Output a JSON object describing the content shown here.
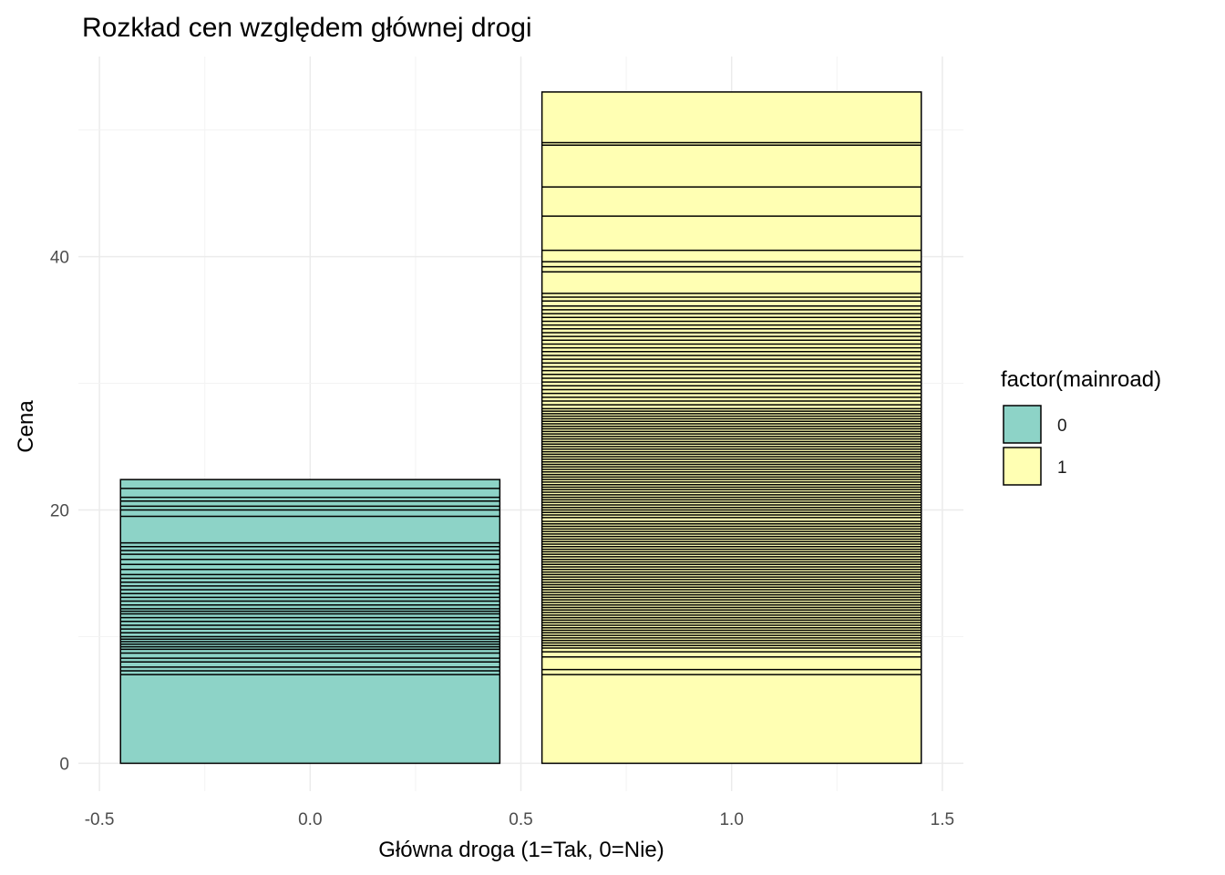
{
  "chart_data": {
    "type": "bar",
    "title": "Rozkład cen względem głównej drogi",
    "xlabel": "Główna droga (1=Tak, 0=Nie)",
    "ylabel": "Cena",
    "xlim": [
      -0.55,
      1.55
    ],
    "ylim": [
      -2.2,
      55.8
    ],
    "x_ticks": [
      -0.5,
      0.0,
      0.5,
      1.0,
      1.5
    ],
    "x_tick_labels": [
      "-0.5",
      "0.0",
      "0.5",
      "1.0",
      "1.5"
    ],
    "y_ticks": [
      0,
      20,
      40
    ],
    "y_tick_labels": [
      "0",
      "20",
      "40"
    ],
    "grid": true,
    "legend": {
      "title": "factor(mainroad)",
      "position": "right",
      "entries": [
        {
          "label": "0",
          "color": "#8dd3c7"
        },
        {
          "label": "1",
          "color": "#ffffb3"
        }
      ]
    },
    "bar_width": 0.9,
    "outline_color": "#000000",
    "series": [
      {
        "name": "0",
        "x": 0,
        "color": "#8dd3c7",
        "total": 22.4
      },
      {
        "name": "1",
        "x": 1,
        "color": "#ffffb3",
        "total": 53.0
      }
    ],
    "segment_boundaries": {
      "0": [
        7.0,
        7.3,
        7.6,
        8.0,
        8.3,
        8.7,
        9.0,
        9.2,
        9.4,
        9.6,
        9.8,
        10.0,
        10.3,
        10.6,
        10.9,
        11.2,
        11.5,
        11.8,
        12.0,
        12.2,
        12.5,
        12.8,
        13.1,
        13.4,
        13.7,
        14.0,
        14.3,
        14.6,
        14.9,
        15.3,
        15.7,
        16.1,
        16.5,
        16.8,
        17.1,
        17.4,
        19.5,
        20.0,
        20.3,
        20.7,
        21.0,
        21.7
      ],
      "1": [
        7.0,
        7.4,
        8.4,
        8.8,
        9.1,
        9.3,
        9.5,
        9.7,
        9.9,
        10.1,
        10.3,
        10.5,
        10.7,
        10.9,
        11.1,
        11.3,
        11.5,
        11.7,
        11.9,
        12.1,
        12.3,
        12.5,
        12.7,
        12.9,
        13.1,
        13.3,
        13.5,
        13.7,
        13.9,
        14.1,
        14.3,
        14.5,
        14.7,
        14.9,
        15.1,
        15.3,
        15.5,
        15.7,
        15.9,
        16.1,
        16.3,
        16.5,
        16.7,
        16.9,
        17.1,
        17.3,
        17.5,
        17.7,
        17.9,
        18.1,
        18.3,
        18.5,
        18.7,
        18.9,
        19.1,
        19.4,
        19.6,
        19.8,
        20.0,
        20.2,
        20.4,
        20.6,
        20.8,
        21.0,
        21.2,
        21.4,
        21.6,
        21.8,
        22.0,
        22.2,
        22.4,
        22.6,
        22.8,
        23.0,
        23.2,
        23.4,
        23.6,
        23.8,
        24.0,
        24.2,
        24.4,
        24.6,
        24.8,
        25.0,
        25.2,
        25.4,
        25.6,
        25.8,
        26.0,
        26.2,
        26.4,
        26.6,
        26.8,
        27.0,
        27.2,
        27.4,
        27.6,
        27.8,
        28.0,
        28.3,
        28.6,
        28.9,
        29.2,
        29.5,
        29.8,
        30.1,
        30.4,
        30.7,
        31.0,
        31.3,
        31.6,
        31.9,
        32.2,
        32.5,
        32.8,
        33.1,
        33.4,
        33.7,
        34.0,
        34.3,
        34.6,
        34.9,
        35.2,
        35.5,
        35.8,
        36.1,
        36.5,
        36.8,
        37.1,
        38.8,
        39.2,
        39.6,
        40.5,
        43.2,
        45.5,
        48.8,
        49.0
      ]
    }
  }
}
